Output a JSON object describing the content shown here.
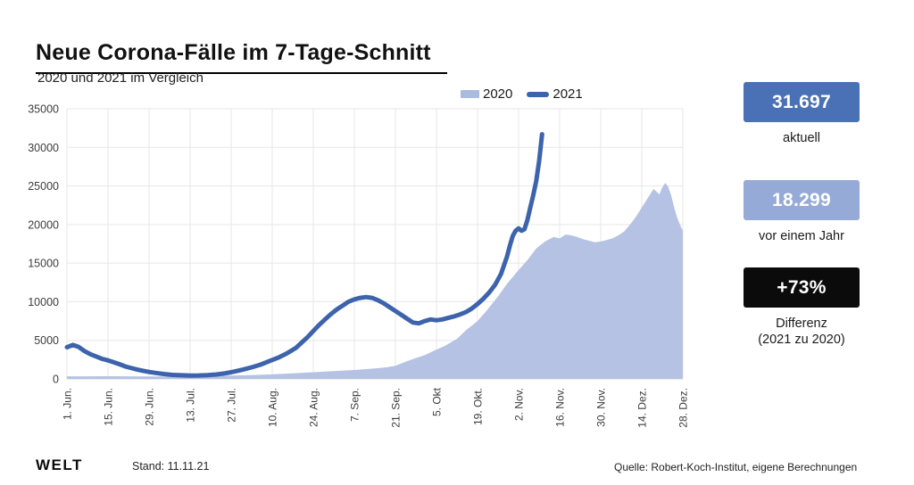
{
  "header": {
    "title": "Neue Corona-Fälle im 7-Tage-Schnitt",
    "subtitle": "2020 und 2021 im Vergleich"
  },
  "legend": {
    "items": [
      {
        "label": "2020",
        "swatch": "area-swatch"
      },
      {
        "label": "2021",
        "swatch": "line-swatch"
      }
    ]
  },
  "stats": [
    {
      "value": "31.697",
      "label": "aktuell"
    },
    {
      "value": "18.299",
      "label": "vor einem Jahr"
    },
    {
      "value": "+73%",
      "label": "Differenz",
      "sublabel": "(2021 zu 2020)"
    }
  ],
  "footer": {
    "logo": "WELT",
    "stand": "Stand: 11.11.21",
    "source": "Quelle: Robert-Koch-Institut, eigene Berechnungen"
  },
  "colors": {
    "line_2021": "#3d63ac",
    "area_2020": "#b5c2e4",
    "legend_2020": "#a9bbdf",
    "badge_current": "#4a70b5",
    "badge_last_year": "#96aad7",
    "badge_diff": "#0b0b0b",
    "grid": "#e7e7e7",
    "grid_zero": "#d9d9d9",
    "axis_text": "#3c3c3c"
  },
  "chart_data": {
    "type": "area",
    "title": "Neue Corona-Fälle im 7-Tage-Schnitt",
    "subtitle": "2020 und 2021 im Vergleich",
    "xlabel": "",
    "ylabel": "",
    "x_unit": "days since 1. Jun",
    "xlim": [
      0,
      210
    ],
    "ylim": [
      0,
      35000
    ],
    "grid": true,
    "legend_position": "top",
    "y_ticks": [
      0,
      5000,
      10000,
      15000,
      20000,
      25000,
      30000,
      35000
    ],
    "x_ticks": [
      {
        "label": "1. Jun.",
        "day": 0
      },
      {
        "label": "15. Jun.",
        "day": 14
      },
      {
        "label": "29. Jun.",
        "day": 28
      },
      {
        "label": "13. Jul.",
        "day": 42
      },
      {
        "label": "27. Jul.",
        "day": 56
      },
      {
        "label": "10. Aug.",
        "day": 70
      },
      {
        "label": "24. Aug.",
        "day": 84
      },
      {
        "label": "7. Sep.",
        "day": 98
      },
      {
        "label": "21. Sep.",
        "day": 112
      },
      {
        "label": "5. Okt",
        "day": 126
      },
      {
        "label": "19. Okt.",
        "day": 140
      },
      {
        "label": "2. Nov.",
        "day": 154
      },
      {
        "label": "16. Nov.",
        "day": 168
      },
      {
        "label": "30. Nov.",
        "day": 182
      },
      {
        "label": "14. Dez.",
        "day": 196
      },
      {
        "label": "28. Dez.",
        "day": 210
      }
    ],
    "series": [
      {
        "name": "2020",
        "type": "area",
        "points": [
          [
            0,
            340
          ],
          [
            7,
            330
          ],
          [
            14,
            350
          ],
          [
            21,
            330
          ],
          [
            28,
            310
          ],
          [
            35,
            300
          ],
          [
            42,
            340
          ],
          [
            49,
            390
          ],
          [
            56,
            430
          ],
          [
            63,
            500
          ],
          [
            70,
            590
          ],
          [
            77,
            720
          ],
          [
            84,
            870
          ],
          [
            91,
            1000
          ],
          [
            98,
            1150
          ],
          [
            105,
            1350
          ],
          [
            109,
            1500
          ],
          [
            112,
            1700
          ],
          [
            116,
            2300
          ],
          [
            119,
            2700
          ],
          [
            122,
            3100
          ],
          [
            126,
            3800
          ],
          [
            129,
            4300
          ],
          [
            133,
            5200
          ],
          [
            136,
            6300
          ],
          [
            140,
            7500
          ],
          [
            143,
            8800
          ],
          [
            147,
            10700
          ],
          [
            150,
            12300
          ],
          [
            154,
            14100
          ],
          [
            157,
            15400
          ],
          [
            160,
            16900
          ],
          [
            163,
            17800
          ],
          [
            166,
            18400
          ],
          [
            168,
            18200
          ],
          [
            170,
            18700
          ],
          [
            172,
            18600
          ],
          [
            174,
            18400
          ],
          [
            176,
            18100
          ],
          [
            178,
            17900
          ],
          [
            180,
            17700
          ],
          [
            182,
            17800
          ],
          [
            184,
            18000
          ],
          [
            186,
            18200
          ],
          [
            188,
            18600
          ],
          [
            190,
            19100
          ],
          [
            192,
            20000
          ],
          [
            194,
            21000
          ],
          [
            196,
            22200
          ],
          [
            198,
            23400
          ],
          [
            200,
            24600
          ],
          [
            201,
            24300
          ],
          [
            202,
            23900
          ],
          [
            203,
            24800
          ],
          [
            204,
            25400
          ],
          [
            205,
            24900
          ],
          [
            206,
            23800
          ],
          [
            207,
            22300
          ],
          [
            208,
            21000
          ],
          [
            209,
            20000
          ],
          [
            210,
            19200
          ]
        ]
      },
      {
        "name": "2021",
        "type": "line",
        "stroke_width": 5,
        "points": [
          [
            0,
            4100
          ],
          [
            2,
            4400
          ],
          [
            4,
            4150
          ],
          [
            6,
            3600
          ],
          [
            8,
            3200
          ],
          [
            10,
            2900
          ],
          [
            12,
            2600
          ],
          [
            14,
            2400
          ],
          [
            16,
            2150
          ],
          [
            18,
            1900
          ],
          [
            20,
            1600
          ],
          [
            22,
            1400
          ],
          [
            24,
            1200
          ],
          [
            26,
            1050
          ],
          [
            28,
            900
          ],
          [
            30,
            780
          ],
          [
            33,
            640
          ],
          [
            36,
            520
          ],
          [
            39,
            470
          ],
          [
            42,
            440
          ],
          [
            45,
            450
          ],
          [
            48,
            500
          ],
          [
            51,
            580
          ],
          [
            54,
            730
          ],
          [
            57,
            950
          ],
          [
            60,
            1200
          ],
          [
            63,
            1500
          ],
          [
            66,
            1850
          ],
          [
            69,
            2300
          ],
          [
            72,
            2750
          ],
          [
            75,
            3300
          ],
          [
            78,
            4000
          ],
          [
            80,
            4700
          ],
          [
            82,
            5400
          ],
          [
            84,
            6200
          ],
          [
            86,
            7000
          ],
          [
            88,
            7700
          ],
          [
            90,
            8400
          ],
          [
            92,
            9000
          ],
          [
            94,
            9500
          ],
          [
            96,
            10000
          ],
          [
            98,
            10300
          ],
          [
            100,
            10500
          ],
          [
            102,
            10600
          ],
          [
            104,
            10500
          ],
          [
            106,
            10200
          ],
          [
            108,
            9800
          ],
          [
            110,
            9300
          ],
          [
            112,
            8800
          ],
          [
            114,
            8300
          ],
          [
            116,
            7800
          ],
          [
            118,
            7300
          ],
          [
            120,
            7200
          ],
          [
            122,
            7500
          ],
          [
            124,
            7700
          ],
          [
            126,
            7600
          ],
          [
            128,
            7700
          ],
          [
            130,
            7900
          ],
          [
            132,
            8100
          ],
          [
            134,
            8350
          ],
          [
            136,
            8650
          ],
          [
            138,
            9100
          ],
          [
            140,
            9700
          ],
          [
            142,
            10400
          ],
          [
            144,
            11200
          ],
          [
            146,
            12200
          ],
          [
            148,
            13600
          ],
          [
            150,
            15800
          ],
          [
            151,
            17200
          ],
          [
            152,
            18500
          ],
          [
            153,
            19200
          ],
          [
            154,
            19500
          ],
          [
            155,
            19200
          ],
          [
            156,
            19400
          ],
          [
            157,
            20600
          ],
          [
            158,
            22200
          ],
          [
            159,
            23800
          ],
          [
            160,
            25600
          ],
          [
            161,
            28200
          ],
          [
            162,
            31697
          ]
        ]
      }
    ],
    "annotations": {
      "current_2021": 31697,
      "same_day_2020": 18299,
      "difference_pct": "+73%",
      "as_of": "11.11.21"
    }
  }
}
